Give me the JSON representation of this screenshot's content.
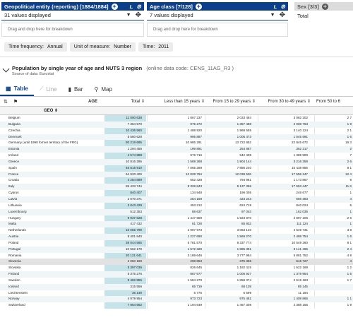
{
  "filters": [
    {
      "title": "Geopolitical entity (reporting) [1884/1884]",
      "selected": "31 values displayed",
      "drop_hint": "Drag and drop here for breakdown"
    },
    {
      "title": "Age class [7/128]",
      "selected": "7 values displayed",
      "drop_hint": "Drag and drop here for breakdown"
    },
    {
      "title": "Sex [3/3]",
      "selected": "Total"
    }
  ],
  "filter_chips": [
    {
      "label": "Time frequency:",
      "value": "Annual"
    },
    {
      "label": "Unit of measure:",
      "value": "Number"
    },
    {
      "label": "Time:",
      "value": "2011"
    }
  ],
  "dataset": {
    "title": "Population by single year of age and NUTS 3 region",
    "code": "(online data code: CENS_11AG_R3 )",
    "source": "Source of data: Eurostat"
  },
  "tabs": [
    {
      "label": "Table",
      "icon": "table-icon",
      "state": "active"
    },
    {
      "label": "Line",
      "icon": "line-chart-icon",
      "state": "disabled"
    },
    {
      "label": "Bar",
      "icon": "bar-chart-icon",
      "state": "normal"
    },
    {
      "label": "Map",
      "icon": "map-pin-icon",
      "state": "normal"
    }
  ],
  "table": {
    "age_caption": "AGE",
    "geo_caption": "GEO",
    "columns": [
      "Total",
      "Less than 15 years",
      "From 15 to 29 years",
      "From 30 to 49 years",
      "From 50 to 6"
    ],
    "rows": [
      {
        "geo": "Belgium",
        "values": [
          "11 000 638",
          "1 867 237",
          "2 033 484",
          "3 082 202",
          "2 7"
        ]
      },
      {
        "geo": "Bulgaria",
        "values": [
          "7 364 570",
          "975 272",
          "1 357 488",
          "2 008 763",
          "1 9"
        ]
      },
      {
        "geo": "Czechia",
        "values": [
          "10 436 560",
          "1 488 920",
          "1 968 555",
          "3 140 124",
          "2 1"
        ]
      },
      {
        "geo": "Denmark",
        "values": [
          "5 560 628",
          "995 887",
          "1 005 473",
          "1 545 591",
          "1 6"
        ]
      },
      {
        "geo": "Germany (until 1990 former territory of the FRG)",
        "values": [
          "80 219 695",
          "10 985 291",
          "13 722 852",
          "22 845 672",
          "16 3"
        ]
      },
      {
        "geo": "Estonia",
        "values": [
          "1 294 455",
          "199 891",
          "254 887",
          "352 217",
          "2"
        ]
      },
      {
        "geo": "Ireland",
        "values": [
          "4 574 888",
          "976 716",
          "942 408",
          "1 389 900",
          "7"
        ]
      },
      {
        "geo": "Greece",
        "values": [
          "10 816 286",
          "1 569 268",
          "1 904 144",
          "3 216 359",
          "2 6"
        ]
      },
      {
        "geo": "Spain",
        "values": [
          "46 815 910",
          "7 065 268",
          "7 886 240",
          "15 438 855",
          "8 1"
        ]
      },
      {
        "geo": "France",
        "values": [
          "64 933 400",
          "12 028 794",
          "12 038 536",
          "17 556 247",
          "12 4"
        ]
      },
      {
        "geo": "Croatia",
        "values": [
          "4 284 889",
          "652 428",
          "794 981",
          "1 173 867",
          "9"
        ]
      },
      {
        "geo": "Italy",
        "values": [
          "59 433 744",
          "8 326 843",
          "9 137 356",
          "17 653 447",
          "11 6"
        ]
      },
      {
        "geo": "Cyprus",
        "values": [
          "840 407",
          "134 948",
          "196 005",
          "248 677",
          "1"
        ]
      },
      {
        "geo": "Latvia",
        "values": [
          "2 070 371",
          "254 159",
          "423 243",
          "566 383",
          "4"
        ]
      },
      {
        "geo": "Lithuania",
        "values": [
          "3 043 429",
          "453 212",
          "624 718",
          "840 024",
          "5"
        ]
      },
      {
        "geo": "Luxembourg",
        "values": [
          "512 353",
          "88 637",
          "97 043",
          "162 035",
          "1"
        ]
      },
      {
        "geo": "Hungary",
        "values": [
          "9 937 628",
          "1 447 659",
          "1 923 870",
          "2 897 106",
          "2 6"
        ]
      },
      {
        "geo": "Malta",
        "values": [
          "417 432",
          "61 728",
          "85 932",
          "111 124",
          "1"
        ]
      },
      {
        "geo": "Netherlands",
        "values": [
          "16 655 799",
          "2 907 973",
          "3 063 140",
          "4 649 731",
          "3 8"
        ]
      },
      {
        "geo": "Austria",
        "values": [
          "8 401 940",
          "1 227 690",
          "1 569 270",
          "2 488 754",
          "1 6"
        ]
      },
      {
        "geo": "Poland",
        "values": [
          "38 044 565",
          "5 781 570",
          "8 337 774",
          "10 549 260",
          "8 1"
        ]
      },
      {
        "geo": "Portugal",
        "values": [
          "10 562 178",
          "1 572 329",
          "1 885 391",
          "3 141 465",
          "2 4"
        ]
      },
      {
        "geo": "Romania",
        "values": [
          "20 121 641",
          "3 189 646",
          "3 777 984",
          "5 881 752",
          "4 9"
        ]
      },
      {
        "geo": "Slovenia",
        "values": [
          "2 050 189",
          "298 853",
          "375 365",
          "616 727",
          "4"
        ]
      },
      {
        "geo": "Slovakia",
        "values": [
          "5 397 036",
          "826 645",
          "1 182 415",
          "1 622 169",
          "1 2"
        ]
      },
      {
        "geo": "Finland",
        "values": [
          "5 375 276",
          "887 677",
          "1 005 927",
          "1 379 954",
          "1 5"
        ]
      },
      {
        "geo": "Sweden",
        "values": [
          "9 482 855",
          "1 584 270",
          "1 858 374",
          "2 519 183",
          "1 7"
        ]
      },
      {
        "geo": "Iceland",
        "values": [
          "315 556",
          "65 719",
          "68 139",
          "85 145",
          ""
        ]
      },
      {
        "geo": "Liechtenstein",
        "values": [
          "36 149",
          "5 775",
          "6 599",
          "11 194",
          ""
        ]
      },
      {
        "geo": "Norway",
        "values": [
          "4 979 954",
          "973 723",
          "975 481",
          "1 408 865",
          "1 1"
        ]
      },
      {
        "geo": "Switzerland",
        "values": [
          "7 954 662",
          "1 194 649",
          "1 467 308",
          "2 388 155",
          "1 9"
        ]
      }
    ],
    "highlighted_row": "Slovenia"
  },
  "colors": {
    "accent": "#0b3f8c",
    "total_col": "#c6e3ea"
  }
}
